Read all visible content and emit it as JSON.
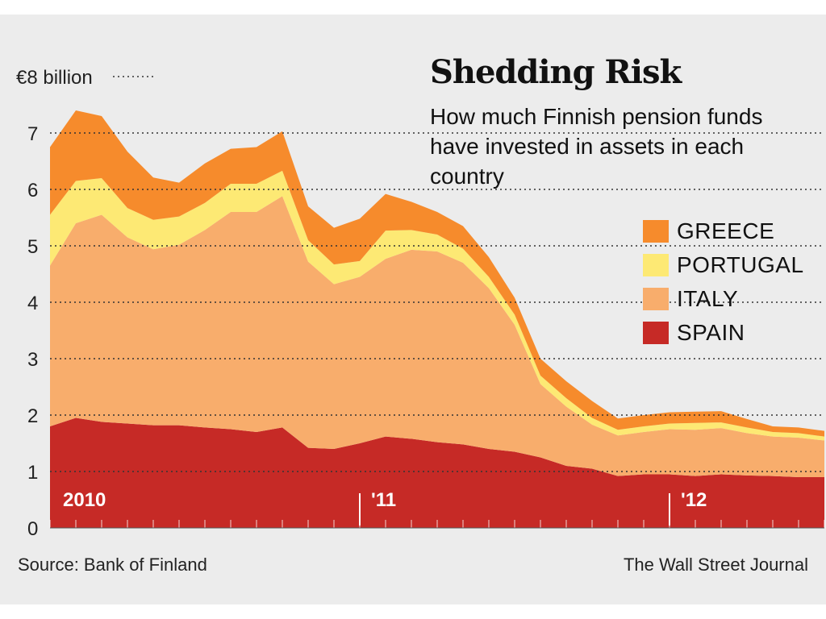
{
  "title": "Shedding Risk",
  "subtitle": "How much Finnish pension funds have invested in assets in each country",
  "source": "Source: Bank of Finland",
  "credit": "The Wall Street Journal",
  "colors": {
    "greece": "#f68b2c",
    "portugal": "#fde974",
    "italy": "#f8ad6c",
    "spain": "#c62a26",
    "background": "#ececec",
    "grid": "#333333"
  },
  "legend": [
    {
      "key": "greece",
      "label": "GREECE"
    },
    {
      "key": "portugal",
      "label": "PORTUGAL"
    },
    {
      "key": "italy",
      "label": "ITALY"
    },
    {
      "key": "spain",
      "label": "SPAIN"
    }
  ],
  "chart_data": {
    "type": "area",
    "stacked": true,
    "y_axis": {
      "ylim": [
        0,
        8
      ],
      "ticks": [
        0,
        1,
        2,
        3,
        4,
        5,
        6,
        7,
        8
      ],
      "tick_labels": [
        "0",
        "1",
        "2",
        "3",
        "4",
        "5",
        "6",
        "7",
        "€8 billion"
      ],
      "grid": "dotted"
    },
    "x_year_labels": [
      {
        "label": "2010",
        "index": 0
      },
      {
        "label": "'11",
        "index": 12
      },
      {
        "label": "'12",
        "index": 24
      }
    ],
    "n_months": 30,
    "series": [
      {
        "name": "SPAIN",
        "color": "#c62a26",
        "values": [
          1.8,
          1.95,
          1.88,
          1.85,
          1.82,
          1.82,
          1.78,
          1.75,
          1.7,
          1.78,
          1.42,
          1.4,
          1.5,
          1.62,
          1.58,
          1.52,
          1.48,
          1.4,
          1.35,
          1.25,
          1.1,
          1.05,
          0.92,
          0.95,
          0.95,
          0.92,
          0.95,
          0.93,
          0.92,
          0.9,
          0.9
        ]
      },
      {
        "name": "ITALY",
        "color": "#f8ad6c",
        "values": [
          2.85,
          3.45,
          3.67,
          3.3,
          3.12,
          3.2,
          3.5,
          3.85,
          3.9,
          4.1,
          3.3,
          2.92,
          2.95,
          3.15,
          3.35,
          3.38,
          3.22,
          2.85,
          2.25,
          1.3,
          1.05,
          0.78,
          0.72,
          0.75,
          0.8,
          0.82,
          0.82,
          0.75,
          0.7,
          0.7,
          0.65
        ]
      },
      {
        "name": "PORTUGAL",
        "color": "#fde974",
        "values": [
          0.9,
          0.75,
          0.65,
          0.52,
          0.52,
          0.5,
          0.48,
          0.5,
          0.5,
          0.45,
          0.38,
          0.35,
          0.28,
          0.5,
          0.35,
          0.3,
          0.25,
          0.2,
          0.18,
          0.15,
          0.15,
          0.12,
          0.1,
          0.1,
          0.1,
          0.12,
          0.1,
          0.1,
          0.08,
          0.08,
          0.07
        ]
      },
      {
        "name": "GREECE",
        "color": "#f68b2c",
        "values": [
          1.2,
          1.25,
          1.1,
          1.0,
          0.75,
          0.6,
          0.7,
          0.62,
          0.65,
          0.7,
          0.6,
          0.65,
          0.75,
          0.65,
          0.5,
          0.4,
          0.4,
          0.35,
          0.3,
          0.3,
          0.3,
          0.3,
          0.2,
          0.2,
          0.2,
          0.2,
          0.2,
          0.15,
          0.1,
          0.1,
          0.1
        ]
      }
    ]
  }
}
